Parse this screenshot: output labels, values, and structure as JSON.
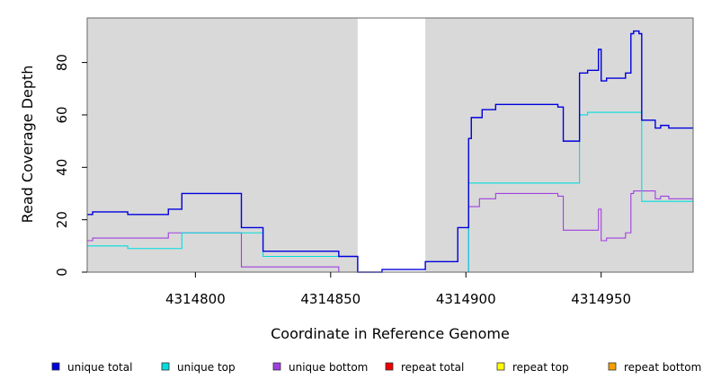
{
  "chart_data": {
    "type": "line",
    "xlabel": "Coordinate in Reference Genome",
    "ylabel": "Read Coverage Depth",
    "xlim": [
      4314760,
      4314984
    ],
    "ylim": [
      0,
      97
    ],
    "x_ticks": [
      4314800,
      4314850,
      4314900,
      4314950
    ],
    "x_tick_labels": [
      "4314800",
      "4314850",
      "4314900",
      "4314950"
    ],
    "y_ticks": [
      0,
      20,
      40,
      60,
      80
    ],
    "y_tick_labels": [
      "0",
      "20",
      "40",
      "60",
      "80"
    ],
    "shaded_regions": [
      [
        4314760,
        4314860
      ],
      [
        4314885,
        4314984
      ]
    ],
    "legend_position": "bottom",
    "series": [
      {
        "name": "unique total",
        "color": "#0000dd",
        "points": [
          [
            4314760,
            22
          ],
          [
            4314762,
            23
          ],
          [
            4314775,
            22
          ],
          [
            4314790,
            24
          ],
          [
            4314795,
            30
          ],
          [
            4314817,
            17
          ],
          [
            4314825,
            8
          ],
          [
            4314853,
            6
          ],
          [
            4314860,
            0
          ],
          [
            4314869,
            1
          ],
          [
            4314885,
            4
          ],
          [
            4314897,
            17
          ],
          [
            4314901,
            51
          ],
          [
            4314902,
            59
          ],
          [
            4314906,
            62
          ],
          [
            4314911,
            64
          ],
          [
            4314934,
            63
          ],
          [
            4314936,
            50
          ],
          [
            4314942,
            76
          ],
          [
            4314945,
            77
          ],
          [
            4314949,
            85
          ],
          [
            4314950,
            73
          ],
          [
            4314952,
            74
          ],
          [
            4314959,
            76
          ],
          [
            4314961,
            91
          ],
          [
            4314962,
            92
          ],
          [
            4314964,
            91
          ],
          [
            4314965,
            58
          ],
          [
            4314970,
            55
          ],
          [
            4314972,
            56
          ],
          [
            4314975,
            55
          ],
          [
            4314984,
            55
          ]
        ]
      },
      {
        "name": "unique top",
        "color": "#00dddd",
        "points": [
          [
            4314760,
            10
          ],
          [
            4314775,
            9
          ],
          [
            4314795,
            15
          ],
          [
            4314825,
            6
          ],
          [
            4314860,
            0
          ],
          [
            4314901,
            34
          ],
          [
            4314942,
            60
          ],
          [
            4314945,
            61
          ],
          [
            4314965,
            27
          ],
          [
            4314984,
            27
          ]
        ]
      },
      {
        "name": "unique bottom",
        "color": "#a040e0",
        "points": [
          [
            4314760,
            12
          ],
          [
            4314762,
            13
          ],
          [
            4314790,
            15
          ],
          [
            4314817,
            2
          ],
          [
            4314853,
            0
          ],
          [
            4314901,
            25
          ],
          [
            4314905,
            28
          ],
          [
            4314911,
            30
          ],
          [
            4314934,
            29
          ],
          [
            4314936,
            16
          ],
          [
            4314949,
            24
          ],
          [
            4314950,
            12
          ],
          [
            4314952,
            13
          ],
          [
            4314959,
            15
          ],
          [
            4314961,
            30
          ],
          [
            4314962,
            31
          ],
          [
            4314970,
            28
          ],
          [
            4314972,
            29
          ],
          [
            4314975,
            28
          ],
          [
            4314984,
            28
          ]
        ]
      },
      {
        "name": "repeat total",
        "color": "#ee0000",
        "points": [
          [
            4314760,
            0
          ],
          [
            4314984,
            0
          ]
        ]
      },
      {
        "name": "repeat top",
        "color": "#ffff00",
        "points": [
          [
            4314760,
            0
          ],
          [
            4314984,
            0
          ]
        ]
      },
      {
        "name": "repeat bottom",
        "color": "#f5a000",
        "points": [
          [
            4314760,
            0
          ],
          [
            4314984,
            0
          ]
        ]
      }
    ]
  }
}
